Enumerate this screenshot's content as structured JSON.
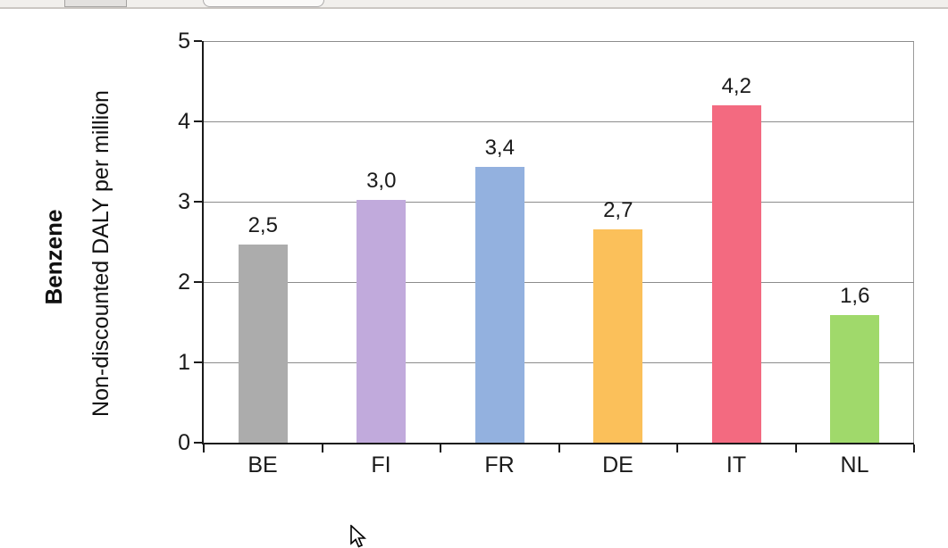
{
  "chrome": {
    "strip_color": "#f1efec",
    "divider_color": "#cbc7c3"
  },
  "chart_data": {
    "type": "bar",
    "title": "Benzene",
    "ylabel": "Non-discounted DALY per million",
    "xlabel": "",
    "categories": [
      "BE",
      "FI",
      "FR",
      "DE",
      "IT",
      "NL"
    ],
    "values": [
      2.47,
      3.02,
      3.43,
      2.66,
      4.2,
      1.59
    ],
    "value_labels": [
      "2,5",
      "3,0",
      "3,4",
      "2,7",
      "4,2",
      "1,6"
    ],
    "bar_colors": [
      "#acacac",
      "#c1aadc",
      "#93b1df",
      "#fbc05a",
      "#f36a80",
      "#a0d96b"
    ],
    "ylim": [
      0,
      5
    ],
    "yticks": [
      "0",
      "1",
      "2",
      "3",
      "4",
      "5"
    ],
    "grid": true,
    "legend_position": "none",
    "decimal_separator": ","
  }
}
